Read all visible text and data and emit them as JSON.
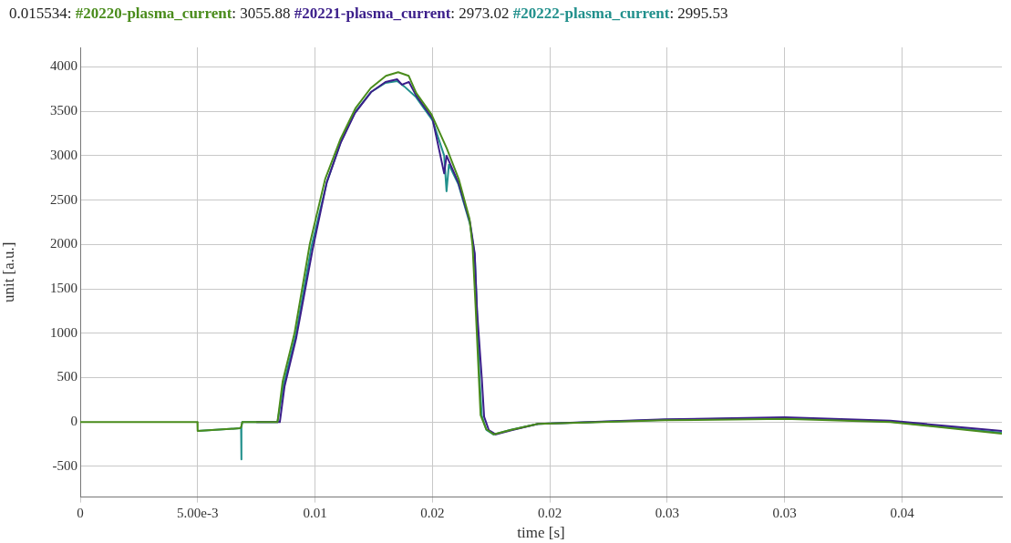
{
  "chart_data": {
    "type": "line",
    "xlabel": "time [s]",
    "ylabel": "unit [a.u.]",
    "annotations": [
      "0.015534:",
      ": 3055.88",
      ": 2973.02",
      ": 2995.53"
    ],
    "xlim": [
      0,
      0.03925
    ],
    "xticks": [
      0,
      {
        "value": 0.005,
        "label": "5.00e-3"
      },
      0.01,
      {
        "value": 0.015,
        "label": "0.02"
      },
      0.02,
      {
        "value": 0.025,
        "label": "0.03"
      },
      0.03,
      {
        "value": 0.035,
        "label": "0.04"
      }
    ],
    "ylim": [
      -845,
      4220
    ],
    "yticks": [
      -500,
      0,
      500,
      1000,
      1500,
      2000,
      2500,
      3000,
      3500,
      4000
    ],
    "grid": true,
    "legend": "top",
    "marker": "none",
    "line_style": "solid",
    "series": [
      {
        "name": "#20220-plasma_current",
        "color": "#4a8c1c",
        "x": [
          0,
          0.00499,
          0.005,
          0.0068,
          0.00685,
          0.0069,
          0.0075,
          0.0084,
          0.00862,
          0.00913,
          0.00978,
          0.01043,
          0.01108,
          0.01172,
          0.01237,
          0.01302,
          0.01354,
          0.01399,
          0.01431,
          0.01496,
          0.01561,
          0.01612,
          0.01658,
          0.01671,
          0.01684,
          0.01696,
          0.01705,
          0.01729,
          0.01761,
          0.01832,
          0.01949,
          0.0249,
          0.03,
          0.0345,
          0.03925
        ],
        "values": [
          0,
          0,
          -100,
          -70,
          -60,
          0,
          0,
          0,
          456,
          1007,
          2010,
          2736,
          3186,
          3533,
          3761,
          3899,
          3940,
          3899,
          3705,
          3464,
          3083,
          2737,
          2287,
          1976,
          1286,
          596,
          77,
          -80,
          -139,
          -90,
          -20,
          20,
          35,
          0,
          -130
        ]
      },
      {
        "name": "#20221-plasma_current",
        "color": "#3b1e8a",
        "x": [
          0.0075,
          0.0085,
          0.0087,
          0.0092,
          0.0099,
          0.0105,
          0.0111,
          0.0117,
          0.0124,
          0.013,
          0.0135,
          0.0137,
          0.014,
          0.0143,
          0.015,
          0.0155,
          0.0156,
          0.0161,
          0.0166,
          0.0168,
          0.0169,
          0.0171,
          0.0172,
          0.0174,
          0.0177,
          0.0184,
          0.0195,
          0.0249,
          0.03,
          0.0345,
          0.03925
        ],
        "values": [
          0,
          0,
          400,
          950,
          1950,
          2700,
          3150,
          3480,
          3720,
          3830,
          3860,
          3800,
          3830,
          3680,
          3420,
          2800,
          3000,
          2700,
          2250,
          1900,
          1250,
          500,
          60,
          -90,
          -140,
          -90,
          -20,
          30,
          55,
          15,
          -100
        ]
      },
      {
        "name": "#20222-plasma_current",
        "color": "#21908c",
        "x": [
          0.005,
          0.0068,
          0.00685,
          0.00686,
          0.00687,
          0.0069,
          0.0075,
          0.0084,
          0.00866,
          0.00918,
          0.00985,
          0.0105,
          0.0111,
          0.0117,
          0.0124,
          0.013,
          0.0135,
          0.0138,
          0.0143,
          0.015,
          0.0155,
          0.0156,
          0.0157,
          0.0161,
          0.0166,
          0.0168,
          0.0169,
          0.017,
          0.0171,
          0.0173,
          0.0176,
          0.0183,
          0.0195,
          0.0249,
          0.03,
          0.0345,
          0.03925
        ],
        "values": [
          -100,
          -70,
          -60,
          -420,
          -60,
          0,
          0,
          0,
          420,
          980,
          1980,
          2700,
          3160,
          3490,
          3720,
          3820,
          3840,
          3780,
          3660,
          3400,
          3000,
          2600,
          2900,
          2680,
          2230,
          1880,
          1230,
          520,
          70,
          -90,
          -140,
          -90,
          -20,
          25,
          45,
          5,
          -120
        ]
      }
    ]
  }
}
